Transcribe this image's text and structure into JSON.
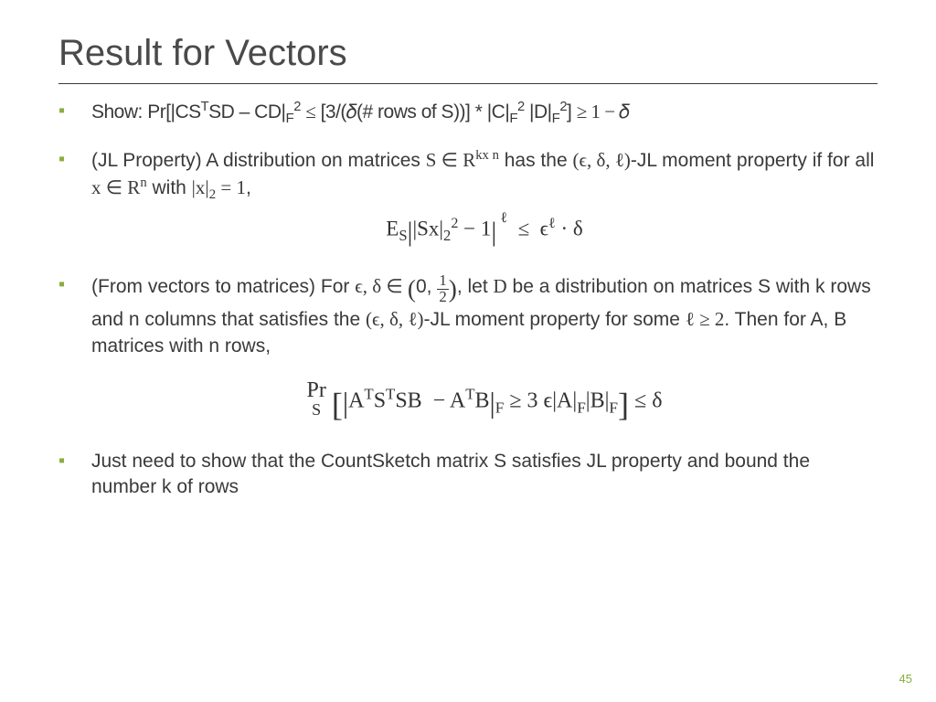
{
  "title": "Result for Vectors",
  "page_number": "45",
  "accent_color": "#8aad3f",
  "text_color": "#3a3a3a",
  "background_color": "#ffffff",
  "title_fontsize": 40,
  "body_fontsize": 21,
  "bullets": {
    "b1": "Show: Pr[|CSᵀSD – CD|_F² ≤ [3/(δ(# rows of S))] * |C|_F² |D|_F²] ≥ 1 − δ",
    "b2_line1": "(JL Property) A distribution on matrices S ∈ Rᵏˣⁿ has the (ϵ, δ, ℓ)-JL moment property if for all x ∈ Rⁿ with |x|₂ = 1,",
    "b2_formula": "E_S | |Sx|₂² − 1 |^ℓ ≤ ϵ^ℓ · δ",
    "b3_line1": "(From vectors to matrices) For ϵ, δ ∈ (0, 1/2), let D be a distribution on matrices S with k rows and n columns that satisfies the (ϵ, δ, ℓ)-JL moment property for some ℓ ≥ 2. Then for A, B matrices with n rows,",
    "b3_formula": "Pr_S [ |AᵀSᵀSB − AᵀB|_F ≥ 3 ϵ|A|_F|B|_F ] ≤ δ",
    "b4": "Just need to show that the CountSketch matrix S satisfies JL property and bound the number k of rows"
  }
}
